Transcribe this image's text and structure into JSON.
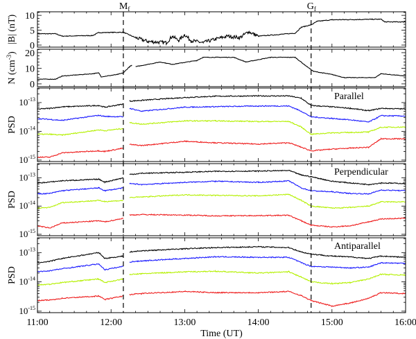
{
  "chart_data": {
    "type": "line",
    "xlabel": "Time (UT)",
    "x_ticks": [
      "11:00",
      "12:00",
      "13:00",
      "14:00",
      "15:00",
      "16:00"
    ],
    "xlim": [
      "11:00",
      "16:00"
    ],
    "markers": [
      {
        "label": "M",
        "sub": "f",
        "time": "12:10"
      },
      {
        "label": "G",
        "sub": "f",
        "time": "14:43"
      }
    ],
    "series_colors": [
      "#000000",
      "#1a1aff",
      "#b4f000",
      "#ee1c1c"
    ],
    "panels": [
      {
        "id": "B",
        "ylabel": "|B| (nT)",
        "scale": "linear",
        "ylim": [
          -0.7,
          11.2
        ],
        "y_ticks": [
          "0",
          "5",
          "10"
        ],
        "y_tick_values": [
          0,
          5,
          10
        ],
        "series": [
          {
            "x": [
              "11:00",
              "11:15",
              "11:20",
              "11:45",
              "11:50",
              "12:10",
              "12:20",
              "12:30",
              "12:45",
              "12:50",
              "12:55",
              "13:00",
              "13:05",
              "13:15",
              "13:25",
              "13:35",
              "13:45",
              "13:52",
              "14:00",
              "14:15",
              "14:30",
              "14:35",
              "14:43",
              "14:48",
              "15:00",
              "15:40",
              "15:43",
              "16:00"
            ],
            "values": [
              3.8,
              3.8,
              3.0,
              3.2,
              4.2,
              4.3,
              2.5,
              1.2,
              0.8,
              3.0,
              1.5,
              3.5,
              1.5,
              0.8,
              2.0,
              3.0,
              2.5,
              4.5,
              3.0,
              3.5,
              4.0,
              6.0,
              6.8,
              8.0,
              8.5,
              8.7,
              7.8,
              7.8
            ]
          }
        ]
      },
      {
        "id": "N",
        "ylabel": "N (cm",
        "ylabel_sup": "-3",
        "ylabel_end": ")",
        "scale": "linear",
        "ylim": [
          -1.8,
          22.2
        ],
        "y_ticks": [
          "0",
          "10",
          "20"
        ],
        "y_tick_values": [
          0,
          10,
          20
        ],
        "series": [
          {
            "x": [
              "11:00",
              "11:15",
              "11:20",
              "11:45",
              "11:50",
              "11:52",
              "12:05",
              "12:10",
              "12:15",
              "12:17",
              "12:18",
              "12:20",
              "12:40",
              "12:50",
              "13:10",
              "13:15",
              "13:40",
              "13:50",
              "14:10",
              "14:30",
              "14:38",
              "14:45",
              "15:00",
              "15:10",
              "15:35",
              "15:40",
              "16:00"
            ],
            "values": [
              3,
              3,
              5,
              6.5,
              7,
              4.5,
              6,
              7,
              11,
              12,
              null,
              11,
              14,
              12.5,
              15,
              17,
              17,
              14,
              17,
              17,
              12,
              8,
              6,
              4,
              4,
              6.5,
              5
            ]
          }
        ]
      },
      {
        "id": "parallel",
        "title": "Parallel",
        "ylabel": "PSD",
        "scale": "log",
        "ylim": [
          8.9e-16,
          3.2e-13
        ],
        "y_ticks": [
          {
            "base": "10",
            "exp": "-13"
          },
          {
            "base": "10",
            "exp": "-14"
          },
          {
            "base": "10",
            "exp": "-15"
          }
        ],
        "y_tick_values": [
          1e-13,
          1e-14,
          1e-15
        ],
        "x": [
          "11:00",
          "11:10",
          "11:20",
          "11:50",
          "11:55",
          "12:10",
          "12:12",
          "12:15",
          "12:25",
          "13:00",
          "13:25",
          "14:00",
          "14:25",
          "14:35",
          "14:43",
          "15:00",
          "15:15",
          "15:30",
          "15:40",
          "16:00"
        ],
        "series": [
          {
            "values": [
              5.9e-14,
              6.3e-14,
              7.1e-14,
              7.9e-14,
              6.9e-14,
              8.9e-14,
              null,
              1.12e-13,
              1.2e-13,
              1.5e-13,
              1.66e-13,
              1.7e-13,
              1.7e-13,
              1.41e-13,
              7.9e-14,
              7.1e-14,
              6.3e-14,
              5.2e-14,
              6.3e-14,
              6e-14
            ]
          },
          {
            "values": [
              2.75e-14,
              2.6e-14,
              2.4e-14,
              3.6e-14,
              3.3e-14,
              3.2e-14,
              null,
              6.3e-14,
              5e-14,
              6.9e-14,
              7.2e-14,
              7.6e-14,
              7.6e-14,
              5e-14,
              3.2e-14,
              2.8e-14,
              2.5e-14,
              2.1e-14,
              3.5e-14,
              3.4e-14
            ]
          },
          {
            "values": [
              7.9e-15,
              7.9e-15,
              7.4e-15,
              1.12e-14,
              1.05e-14,
              1.26e-14,
              null,
              2e-14,
              1.78e-14,
              2.3e-14,
              2.3e-14,
              2.2e-14,
              2.2e-14,
              1.41e-14,
              7.9e-15,
              8.9e-15,
              9.1e-15,
              9.5e-15,
              1.38e-14,
              1.41e-14
            ]
          },
          {
            "values": [
              1.26e-15,
              1.26e-15,
              1.78e-15,
              2.1e-15,
              2e-15,
              2.6e-15,
              null,
              3.5e-15,
              3.2e-15,
              4.5e-15,
              4e-15,
              3.6e-15,
              4e-15,
              2.8e-15,
              2.1e-15,
              2.4e-15,
              2.6e-15,
              2.8e-15,
              5.5e-15,
              5.5e-15
            ]
          }
        ]
      },
      {
        "id": "perpendicular",
        "title": "Perpendicular",
        "ylabel": "PSD",
        "scale": "log",
        "ylim": [
          8.9e-16,
          3.2e-13
        ],
        "y_ticks": [
          {
            "base": "10",
            "exp": "-13"
          },
          {
            "base": "10",
            "exp": "-14"
          },
          {
            "base": "10",
            "exp": "-15"
          }
        ],
        "y_tick_values": [
          1e-13,
          1e-14,
          1e-15
        ],
        "x": [
          "11:00",
          "11:10",
          "11:20",
          "11:50",
          "11:55",
          "12:10",
          "12:12",
          "12:15",
          "12:25",
          "13:00",
          "13:25",
          "14:00",
          "14:25",
          "14:35",
          "14:43",
          "15:00",
          "15:15",
          "15:30",
          "15:40",
          "16:00"
        ],
        "series": [
          {
            "values": [
              6.5e-14,
              7.1e-14,
              7.9e-14,
              8.9e-14,
              7.1e-14,
              1e-13,
              null,
              1.32e-13,
              1.45e-13,
              1.58e-13,
              1.7e-13,
              1.74e-13,
              1.82e-13,
              1.26e-13,
              1.1e-13,
              7.6e-14,
              6.6e-14,
              5.8e-14,
              6.6e-14,
              6.3e-14
            ]
          },
          {
            "values": [
              2.7e-14,
              2.8e-14,
              3.5e-14,
              4.4e-14,
              3.5e-14,
              4.4e-14,
              null,
              6.3e-14,
              5.8e-14,
              6.9e-14,
              7.6e-14,
              6.9e-14,
              7.8e-14,
              4.4e-14,
              3.5e-14,
              3.2e-14,
              2.8e-14,
              2.7e-14,
              3.7e-14,
              3.5e-14
            ]
          },
          {
            "values": [
              8.5e-15,
              8.9e-15,
              1.32e-14,
              1.58e-14,
              1.45e-14,
              1.58e-14,
              null,
              2e-14,
              2.1e-14,
              2.5e-14,
              2.4e-14,
              2.3e-14,
              2.6e-14,
              1.58e-14,
              1e-14,
              8.5e-15,
              8.9e-15,
              1e-14,
              1.41e-14,
              1.41e-14
            ]
          },
          {
            "values": [
              2e-15,
              1.66e-15,
              2.5e-15,
              3e-15,
              2.75e-15,
              3.7e-15,
              null,
              4.8e-15,
              5e-15,
              4.8e-15,
              4.5e-15,
              4.6e-15,
              4.7e-15,
              3e-15,
              2.1e-15,
              1.82e-15,
              2e-15,
              2.75e-15,
              3.5e-15,
              3.7e-15
            ]
          }
        ]
      },
      {
        "id": "antiparallel",
        "title": "Antiparallel",
        "ylabel": "PSD",
        "scale": "log",
        "ylim": [
          8.9e-16,
          3.2e-13
        ],
        "y_ticks": [
          {
            "base": "10",
            "exp": "-13"
          },
          {
            "base": "10",
            "exp": "-14"
          },
          {
            "base": "10",
            "exp": "-15"
          }
        ],
        "y_tick_values": [
          1e-13,
          1e-14,
          1e-15
        ],
        "x": [
          "11:00",
          "11:10",
          "11:20",
          "11:50",
          "11:55",
          "12:10",
          "12:12",
          "12:15",
          "12:25",
          "13:00",
          "13:25",
          "14:00",
          "14:25",
          "14:35",
          "14:43",
          "15:00",
          "15:15",
          "15:30",
          "15:40",
          "16:00"
        ],
        "series": [
          {
            "values": [
              4.5e-14,
              5e-14,
              6.3e-14,
              1e-13,
              6.3e-14,
              7.6e-14,
              null,
              1.05e-13,
              1.15e-13,
              1.35e-13,
              1.48e-13,
              1.58e-13,
              1.48e-13,
              1.05e-13,
              8.9e-14,
              7.6e-14,
              7.1e-14,
              6.3e-14,
              7.6e-14,
              6.9e-14
            ]
          },
          {
            "values": [
              2.2e-14,
              2.4e-14,
              2.8e-14,
              4.1e-14,
              2.6e-14,
              3.4e-14,
              null,
              4.8e-14,
              5.2e-14,
              6.3e-14,
              7.2e-14,
              6.9e-14,
              6.9e-14,
              4.5e-14,
              3.4e-14,
              3.2e-14,
              3e-14,
              3.2e-14,
              4.5e-14,
              4.3e-14
            ]
          },
          {
            "values": [
              7.9e-15,
              8.3e-15,
              9.5e-15,
              1.26e-14,
              9.5e-15,
              1.26e-14,
              null,
              1.78e-14,
              1.9e-14,
              2.2e-14,
              2.3e-14,
              2e-14,
              2.2e-14,
              1.45e-14,
              1e-14,
              8.7e-15,
              9.5e-15,
              1.26e-14,
              1.82e-14,
              1.7e-14
            ]
          },
          {
            "values": [
              2.3e-15,
              2.4e-15,
              2.75e-15,
              3.3e-15,
              2.5e-15,
              3.3e-15,
              null,
              3.7e-15,
              4e-15,
              4.7e-15,
              4.3e-15,
              4.3e-15,
              4.7e-15,
              3.4e-15,
              2.3e-15,
              1.5e-15,
              1.9e-15,
              2.75e-15,
              4.3e-15,
              4e-15
            ]
          }
        ]
      }
    ]
  }
}
